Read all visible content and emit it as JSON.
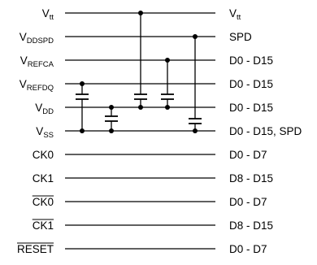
{
  "rows": [
    {
      "id": "vtt",
      "left": {
        "base": "V",
        "sub": "tt"
      },
      "right": {
        "base": "V",
        "sub": "tt"
      }
    },
    {
      "id": "vddspd",
      "left": {
        "base": "V",
        "sub": "DDSPD"
      },
      "right": {
        "text": "SPD"
      }
    },
    {
      "id": "vrefca",
      "left": {
        "base": "V",
        "sub": "REFCA"
      },
      "right": {
        "text": "D0 - D15"
      }
    },
    {
      "id": "vrefdq",
      "left": {
        "base": "V",
        "sub": "REFDQ"
      },
      "right": {
        "text": "D0 - D15"
      }
    },
    {
      "id": "vdd",
      "left": {
        "base": "V",
        "sub": "DD"
      },
      "right": {
        "text": "D0 - D15"
      }
    },
    {
      "id": "vss",
      "left": {
        "base": "V",
        "sub": "SS"
      },
      "right": {
        "text": "D0 - D15, SPD"
      }
    },
    {
      "id": "ck0",
      "left": {
        "text": "CK0"
      },
      "right": {
        "text": "D0 - D7"
      }
    },
    {
      "id": "ck1",
      "left": {
        "text": "CK1"
      },
      "right": {
        "text": "D8 - D15"
      }
    },
    {
      "id": "ck0-bar",
      "left": {
        "text": "CK0",
        "overline": true
      },
      "right": {
        "text": "D0 - D7"
      }
    },
    {
      "id": "ck1-bar",
      "left": {
        "text": "CK1",
        "overline": true
      },
      "right": {
        "text": "D8 - D15"
      }
    },
    {
      "id": "reset-bar",
      "left": {
        "text": "RESET",
        "overline": true
      },
      "right": {
        "text": "D0 - D7"
      }
    }
  ]
}
